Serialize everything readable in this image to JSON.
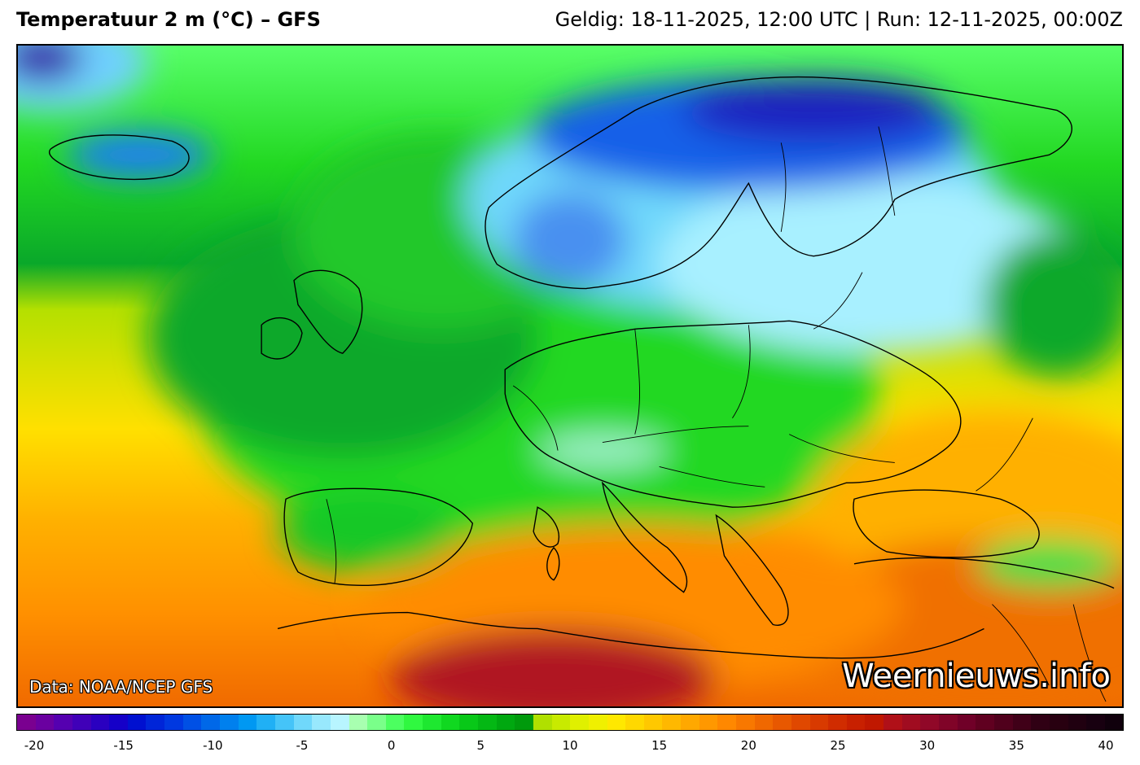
{
  "header": {
    "title": "Temperatuur 2 m (°C) – GFS",
    "subtitle": "Geldig: 18-11-2025, 12:00 UTC | Run: 12-11-2025, 00:00Z"
  },
  "map": {
    "credit": "Data: NOAA/NCEP GFS",
    "brand": "Weernieuws.info",
    "colors": {
      "very_cold": "#3a1aa8",
      "cold": "#1560e8",
      "cool": "#6fd0ff",
      "zero": "#a8ffb0",
      "mild": "#22d822",
      "mild_dark": "#0aa82a",
      "ten": "#b5e000",
      "warm": "#ffd400",
      "warmer": "#ff9a00",
      "hot": "#e24a10",
      "very_hot": "#a01020",
      "coastline": "#000000"
    }
  },
  "legend": {
    "min": -20,
    "max": 40,
    "tick_labels": [
      "-20",
      "-15",
      "-10",
      "-5",
      "0",
      "5",
      "10",
      "15",
      "20",
      "25",
      "30",
      "35",
      "40"
    ],
    "steps": [
      "#7a0090",
      "#6a00a0",
      "#5500b0",
      "#4000b8",
      "#2a00c0",
      "#1500c8",
      "#0010d0",
      "#0025d8",
      "#0038e0",
      "#0050e5",
      "#0068e8",
      "#0080ee",
      "#0098f2",
      "#20b0f5",
      "#45c4f8",
      "#70d8fb",
      "#98e8fd",
      "#b8f5ff",
      "#a8ffb0",
      "#7aff8a",
      "#4cff60",
      "#30f840",
      "#1ee830",
      "#10d820",
      "#08c818",
      "#04b814",
      "#00a810",
      "#009a0c",
      "#b0e000",
      "#c8ea00",
      "#e0f000",
      "#f0f000",
      "#ffe800",
      "#ffd800",
      "#ffc800",
      "#ffb800",
      "#ffa800",
      "#ff9800",
      "#ff8800",
      "#f87800",
      "#f06800",
      "#e85800",
      "#e04800",
      "#d83a00",
      "#d02c00",
      "#c82000",
      "#c01800",
      "#b01018",
      "#a00c20",
      "#900828",
      "#800428",
      "#700028",
      "#600020",
      "#50001c",
      "#400018",
      "#300014",
      "#280010",
      "#200010",
      "#180010",
      "#10000c"
    ]
  }
}
